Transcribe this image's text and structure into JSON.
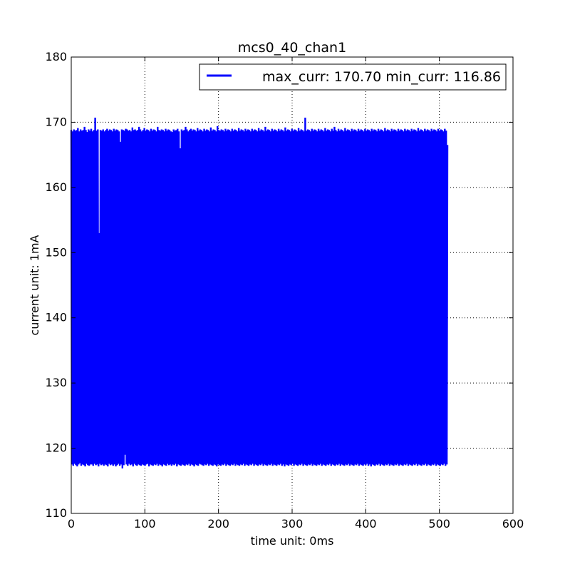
{
  "chart_data": {
    "type": "line",
    "title": "mcs0_40_chan1",
    "xlabel": "time unit: 0ms",
    "ylabel": "current unit: 1mA",
    "xlim": [
      0,
      600
    ],
    "ylim": [
      110,
      180
    ],
    "xticks": [
      "0",
      "100",
      "200",
      "300",
      "400",
      "500",
      "600"
    ],
    "yticks": [
      "110",
      "120",
      "130",
      "140",
      "150",
      "160",
      "170",
      "180"
    ],
    "grid": true,
    "legend_position": "top-right",
    "series": [
      {
        "name": "max_curr: 170.70 min_curr: 116.86",
        "color": "#0000ff",
        "x_start": 0,
        "x_end": 511,
        "max": 170.7,
        "min": 116.86,
        "high_level": 168.8,
        "low_level": 117.5,
        "values": [
          168.8,
          117.5,
          168.6,
          117.3,
          168.9,
          117.6,
          168.7,
          117.4,
          168.8,
          117.2,
          169.1,
          117.5,
          168.6,
          117.7,
          168.9,
          117.3,
          168.7,
          117.5,
          168.8,
          117.4,
          169.3,
          117.2,
          168.8,
          117.6,
          168.5,
          117.4,
          168.9,
          117.3,
          168.7,
          117.5,
          169.0,
          117.5,
          168.6,
          117.3,
          168.8,
          117.6,
          170.7,
          117.4,
          168.7,
          117.5,
          168.9,
          117.2,
          153.0,
          117.6,
          168.8,
          117.4,
          168.7,
          117.5,
          168.9,
          117.3,
          168.6,
          117.5,
          168.8,
          117.4,
          169.0,
          117.2,
          168.7,
          117.6,
          168.9,
          117.4,
          168.8,
          117.5,
          168.6,
          117.3,
          169.0,
          117.5,
          168.7,
          117.2,
          168.9,
          117.4,
          168.8,
          117.6,
          168.6,
          117.3,
          167.0,
          117.5,
          168.9,
          116.9,
          168.8,
          117.4,
          168.7,
          119.0,
          169.0,
          117.5,
          168.9,
          117.3,
          168.7,
          117.6,
          168.8,
          117.4,
          168.6,
          117.5,
          169.2,
          117.2,
          168.8,
          117.6,
          168.9,
          117.4,
          168.7,
          117.3,
          168.8,
          117.5,
          169.3,
          117.4,
          168.9,
          117.3,
          168.6,
          117.5,
          168.8,
          117.4,
          169.1,
          117.3,
          168.7,
          117.5,
          168.9,
          117.6,
          168.8,
          117.2,
          168.6,
          117.5,
          169.0,
          117.4,
          168.7,
          117.3,
          168.9,
          117.5,
          168.8,
          117.4,
          168.6,
          117.6,
          169.3,
          117.3,
          168.8,
          117.5,
          168.7,
          117.4,
          168.9,
          117.2,
          168.8,
          117.5,
          168.6,
          117.4,
          169.0,
          117.3,
          168.7,
          117.6,
          168.9,
          117.4,
          168.8,
          117.5,
          168.6,
          117.3,
          168.5,
          117.5,
          168.9,
          117.4,
          168.7,
          117.6,
          168.8,
          117.2,
          169.0,
          117.5,
          168.6,
          117.4,
          166.0,
          117.3,
          168.9,
          117.5,
          168.7,
          117.4,
          168.8,
          117.3,
          169.3,
          117.5,
          168.9,
          117.4,
          168.6,
          117.6,
          168.8,
          117.3,
          169.0,
          117.5,
          168.7,
          117.4,
          168.9,
          117.2,
          168.8,
          117.5,
          168.6,
          117.4,
          169.1,
          117.3,
          168.7,
          117.6,
          168.9,
          117.5,
          168.8,
          117.4,
          168.6,
          117.3,
          169.0,
          117.5,
          168.7,
          117.4,
          168.9,
          117.6,
          168.8,
          117.3,
          168.6,
          117.5,
          169.2,
          117.4,
          168.7,
          117.3,
          168.9,
          117.5,
          168.8,
          117.4,
          168.6,
          117.2,
          169.4,
          117.5,
          168.8,
          117.4,
          168.7,
          117.3,
          168.9,
          117.5,
          168.8,
          117.4,
          168.6,
          117.6,
          169.0,
          117.3,
          168.7,
          117.5,
          168.9,
          117.4,
          168.8,
          117.3,
          168.6,
          117.5,
          169.0,
          117.4,
          168.7,
          117.6,
          168.9,
          117.3,
          168.8,
          117.5,
          168.6,
          117.4,
          169.1,
          117.3,
          168.7,
          117.5,
          168.9,
          117.4,
          168.8,
          117.6,
          168.6,
          117.3,
          169.0,
          117.5,
          168.7,
          117.4,
          168.9,
          117.3,
          168.8,
          117.5,
          168.6,
          117.4,
          169.0,
          117.6,
          168.7,
          117.3,
          168.9,
          117.5,
          168.8,
          117.4,
          168.6,
          117.3,
          169.1,
          117.5,
          168.7,
          117.4,
          168.9,
          117.6,
          168.8,
          117.3,
          168.6,
          117.5,
          169.3,
          117.4,
          168.7,
          117.3,
          168.9,
          117.5,
          168.8,
          117.4,
          168.6,
          117.6,
          169.0,
          117.3,
          168.7,
          117.5,
          168.9,
          117.4,
          168.8,
          117.3,
          168.6,
          117.5,
          169.0,
          117.4,
          168.7,
          117.6,
          168.9,
          117.3,
          168.8,
          117.5,
          168.6,
          117.2,
          169.2,
          117.5,
          168.7,
          117.4,
          168.9,
          117.3,
          168.8,
          117.5,
          168.6,
          117.4,
          169.0,
          117.6,
          168.7,
          117.3,
          168.9,
          117.5,
          168.8,
          117.4,
          168.6,
          117.3,
          169.1,
          117.5,
          168.7,
          117.4,
          168.9,
          117.6,
          168.8,
          117.3,
          168.6,
          117.5,
          170.7,
          117.4,
          168.7,
          117.3,
          168.9,
          117.5,
          168.8,
          117.4,
          168.6,
          117.6,
          169.0,
          117.3,
          168.7,
          117.5,
          168.9,
          117.4,
          168.8,
          117.3,
          168.6,
          117.5,
          169.0,
          117.4,
          168.7,
          117.6,
          168.9,
          117.3,
          168.8,
          117.5,
          168.6,
          117.4,
          169.1,
          117.3,
          168.7,
          117.5,
          168.9,
          117.4,
          168.8,
          117.6,
          168.6,
          117.3,
          169.0,
          117.5,
          168.7,
          117.4,
          169.3,
          117.3,
          168.8,
          117.5,
          168.6,
          117.4,
          169.0,
          117.6,
          168.7,
          117.3,
          168.9,
          117.5,
          168.8,
          117.4,
          168.6,
          117.3,
          169.1,
          117.5,
          168.7,
          117.4,
          168.9,
          117.6,
          168.8,
          117.3,
          168.6,
          117.5,
          169.0,
          117.4,
          168.7,
          117.3,
          168.9,
          117.5,
          168.8,
          117.4,
          168.6,
          117.6,
          169.0,
          117.3,
          168.7,
          117.5,
          168.9,
          117.4,
          168.8,
          117.3,
          168.6,
          117.5,
          169.0,
          117.4,
          168.7,
          117.6,
          168.9,
          117.3,
          168.8,
          117.5,
          168.6,
          117.2,
          169.0,
          117.5,
          168.7,
          117.4,
          168.9,
          117.3,
          168.8,
          117.5,
          168.6,
          117.4,
          169.0,
          117.6,
          168.7,
          117.3,
          168.9,
          117.5,
          168.8,
          117.4,
          168.6,
          117.3,
          169.1,
          117.5,
          168.7,
          117.4,
          168.9,
          117.6,
          168.8,
          117.3,
          168.6,
          117.5,
          169.0,
          117.4,
          168.7,
          117.3,
          168.9,
          117.5,
          168.8,
          117.4,
          168.6,
          117.6,
          169.0,
          117.3,
          168.7,
          117.5,
          168.9,
          117.4,
          168.8,
          117.3,
          168.6,
          117.5,
          169.0,
          117.4,
          168.7,
          117.6,
          168.9,
          117.3,
          168.8,
          117.5,
          168.6,
          117.4,
          169.0,
          117.3,
          168.7,
          117.5,
          168.9,
          117.4,
          168.8,
          117.6,
          168.6,
          117.3,
          169.1,
          117.5,
          168.7,
          117.4,
          168.9,
          117.3,
          168.8,
          117.5,
          168.6,
          117.4,
          169.0,
          117.6,
          168.7,
          117.3,
          168.9,
          117.5,
          168.8,
          117.4,
          168.6,
          117.3,
          169.0,
          117.5,
          168.7,
          117.4,
          168.9,
          117.6,
          168.8,
          117.3,
          168.6,
          117.5,
          169.0,
          117.4,
          168.7,
          117.3,
          168.9,
          117.5,
          168.8,
          117.4,
          168.6,
          117.6,
          169.0,
          117.3,
          168.7,
          117.5,
          166.5
        ]
      }
    ]
  }
}
